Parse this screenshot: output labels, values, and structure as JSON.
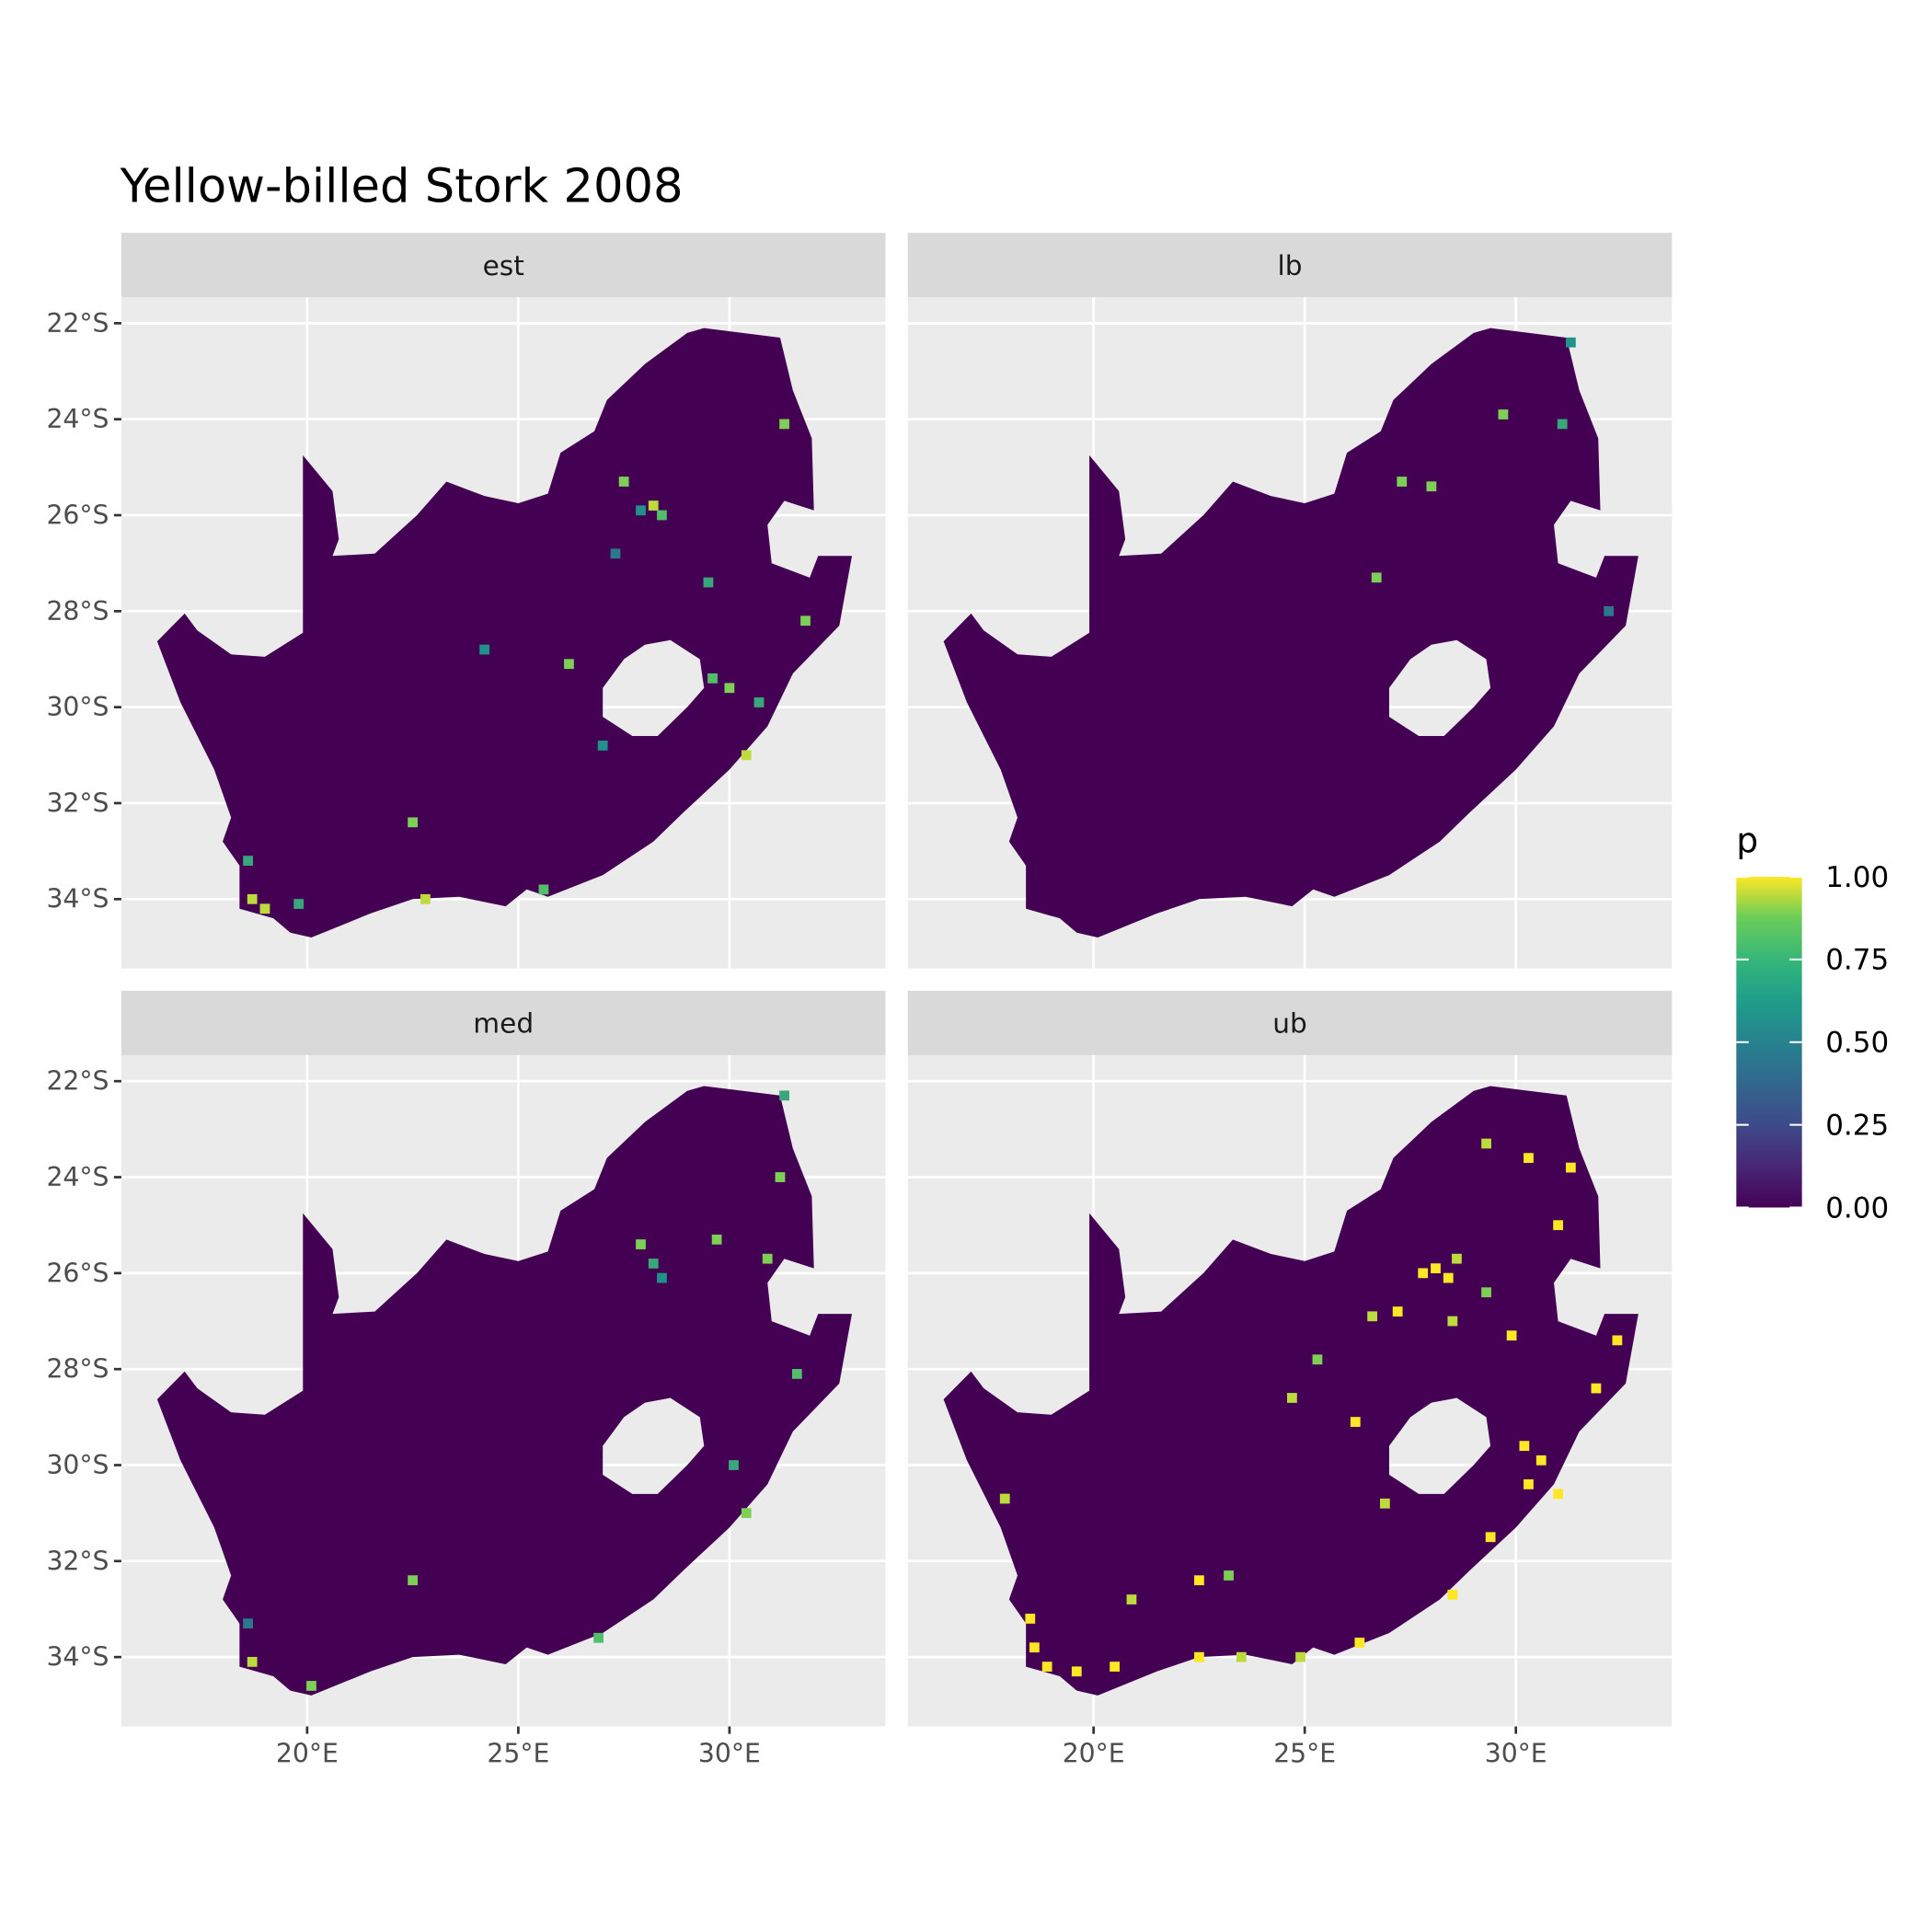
{
  "chart_data": {
    "type": "heatmap",
    "title": "Yellow-billed Stork 2008",
    "xlabel": "",
    "ylabel": "",
    "xlim": [
      15.6,
      33.7
    ],
    "ylim": [
      -35.45,
      -21.46
    ],
    "x_ticks": [
      20,
      25,
      30
    ],
    "x_tick_labels": [
      "20°E",
      "25°E",
      "30°E"
    ],
    "y_ticks": [
      -22,
      -24,
      -26,
      -28,
      -30,
      -32,
      -34
    ],
    "y_tick_labels": [
      "22°S",
      "24°S",
      "26°S",
      "28°S",
      "30°S",
      "32°S",
      "34°S"
    ],
    "grid": true,
    "legend": {
      "title": "p",
      "position": "right",
      "colormap": "viridis",
      "range": [
        0,
        1
      ],
      "tick_labels": [
        "1.00",
        "0.75",
        "0.50",
        "0.25",
        "0.00"
      ],
      "ticks": [
        1,
        0.75,
        0.5,
        0.25,
        0
      ]
    },
    "background_value": 0,
    "panels": [
      {
        "label": "est",
        "hotspots": [
          [
            28.2,
            -25.8,
            0.9
          ],
          [
            28.4,
            -26.0,
            0.7
          ],
          [
            27.9,
            -25.9,
            0.5
          ],
          [
            27.3,
            -26.8,
            0.4
          ],
          [
            29.5,
            -27.4,
            0.6
          ],
          [
            30.0,
            -29.6,
            0.8
          ],
          [
            30.7,
            -29.9,
            0.6
          ],
          [
            29.6,
            -29.4,
            0.7
          ],
          [
            31.8,
            -28.2,
            0.8
          ],
          [
            26.2,
            -29.1,
            0.8
          ],
          [
            27.0,
            -30.8,
            0.5
          ],
          [
            22.5,
            -32.4,
            0.8
          ],
          [
            18.6,
            -33.2,
            0.6
          ],
          [
            18.7,
            -34.0,
            0.9
          ],
          [
            19.0,
            -34.2,
            0.9
          ],
          [
            19.8,
            -34.1,
            0.6
          ],
          [
            22.8,
            -34.0,
            0.9
          ],
          [
            25.6,
            -33.8,
            0.7
          ],
          [
            30.4,
            -31.0,
            0.9
          ],
          [
            31.3,
            -24.1,
            0.8
          ],
          [
            27.5,
            -25.3,
            0.8
          ],
          [
            24.2,
            -28.8,
            0.5
          ]
        ]
      },
      {
        "label": "lb",
        "hotspots": [
          [
            31.3,
            -22.4,
            0.5
          ],
          [
            29.7,
            -23.9,
            0.8
          ],
          [
            31.1,
            -24.1,
            0.6
          ],
          [
            28.0,
            -25.4,
            0.8
          ],
          [
            27.3,
            -25.3,
            0.8
          ],
          [
            26.7,
            -27.3,
            0.8
          ],
          [
            32.2,
            -28.0,
            0.4
          ]
        ]
      },
      {
        "label": "med",
        "hotspots": [
          [
            28.2,
            -25.8,
            0.6
          ],
          [
            28.4,
            -26.1,
            0.5
          ],
          [
            27.9,
            -25.4,
            0.8
          ],
          [
            31.3,
            -22.3,
            0.6
          ],
          [
            31.2,
            -24.0,
            0.8
          ],
          [
            29.7,
            -25.3,
            0.8
          ],
          [
            30.9,
            -25.7,
            0.8
          ],
          [
            31.6,
            -28.1,
            0.7
          ],
          [
            30.1,
            -30.0,
            0.6
          ],
          [
            30.4,
            -31.0,
            0.8
          ],
          [
            22.5,
            -32.4,
            0.8
          ],
          [
            18.6,
            -33.3,
            0.4
          ],
          [
            18.7,
            -34.1,
            0.9
          ],
          [
            20.1,
            -34.6,
            0.8
          ],
          [
            26.9,
            -33.6,
            0.7
          ]
        ]
      },
      {
        "label": "ub",
        "hotspots": [
          [
            28.1,
            -25.9,
            1
          ],
          [
            28.4,
            -26.1,
            1
          ],
          [
            27.8,
            -26.0,
            1
          ],
          [
            28.6,
            -25.7,
            0.9
          ],
          [
            27.2,
            -26.8,
            1
          ],
          [
            26.6,
            -26.9,
            0.9
          ],
          [
            29.3,
            -26.4,
            0.8
          ],
          [
            29.9,
            -27.3,
            1
          ],
          [
            30.2,
            -29.6,
            1
          ],
          [
            30.6,
            -29.9,
            1
          ],
          [
            30.3,
            -30.4,
            1
          ],
          [
            31.0,
            -30.6,
            1
          ],
          [
            31.9,
            -28.4,
            1
          ],
          [
            32.4,
            -27.4,
            1
          ],
          [
            31.3,
            -23.8,
            1
          ],
          [
            30.3,
            -23.6,
            1
          ],
          [
            29.3,
            -23.3,
            0.9
          ],
          [
            31.0,
            -25.0,
            1
          ],
          [
            26.2,
            -29.1,
            1
          ],
          [
            24.7,
            -28.6,
            0.9
          ],
          [
            26.9,
            -30.8,
            0.9
          ],
          [
            22.5,
            -32.4,
            1
          ],
          [
            23.2,
            -32.3,
            0.8
          ],
          [
            18.5,
            -33.2,
            1
          ],
          [
            18.6,
            -33.8,
            1
          ],
          [
            18.9,
            -34.2,
            1
          ],
          [
            19.6,
            -34.3,
            1
          ],
          [
            20.5,
            -34.2,
            1
          ],
          [
            22.5,
            -34.0,
            1
          ],
          [
            23.5,
            -34.0,
            0.9
          ],
          [
            24.9,
            -34.0,
            0.9
          ],
          [
            26.3,
            -33.7,
            1
          ],
          [
            28.5,
            -32.7,
            1
          ],
          [
            29.4,
            -31.5,
            1
          ],
          [
            20.9,
            -32.8,
            0.9
          ],
          [
            17.9,
            -30.7,
            0.9
          ],
          [
            25.3,
            -27.8,
            0.8
          ],
          [
            28.5,
            -27.0,
            0.9
          ]
        ]
      }
    ]
  }
}
